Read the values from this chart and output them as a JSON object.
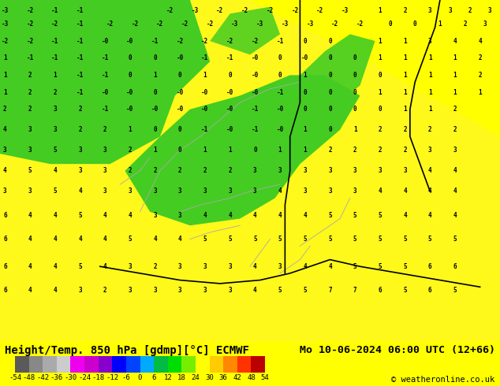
{
  "title_left": "Height/Temp. 850 hPa [gdmp][°C] ECMWF",
  "title_right": "Mo 10-06-2024 06:00 UTC (12+66)",
  "copyright": "© weatheronline.co.uk",
  "colorbar_edges": [
    -54,
    -48,
    -42,
    -36,
    -30,
    -24,
    -18,
    -12,
    -6,
    0,
    6,
    12,
    18,
    24,
    30,
    36,
    42,
    48,
    54
  ],
  "colorbar_colors": [
    "#5a5a5a",
    "#888888",
    "#aaaaaa",
    "#cccccc",
    "#ee00ee",
    "#cc00cc",
    "#8800cc",
    "#0000ff",
    "#0044ff",
    "#00aaff",
    "#00bb44",
    "#00dd00",
    "#77ee00",
    "#ffff00",
    "#ffcc00",
    "#ff8800",
    "#ff3300",
    "#bb0000",
    "#770000"
  ],
  "text_color": "#000000",
  "label_fontsize": 9,
  "title_fontsize": 10,
  "colorbar_label_fontsize": 6.5
}
